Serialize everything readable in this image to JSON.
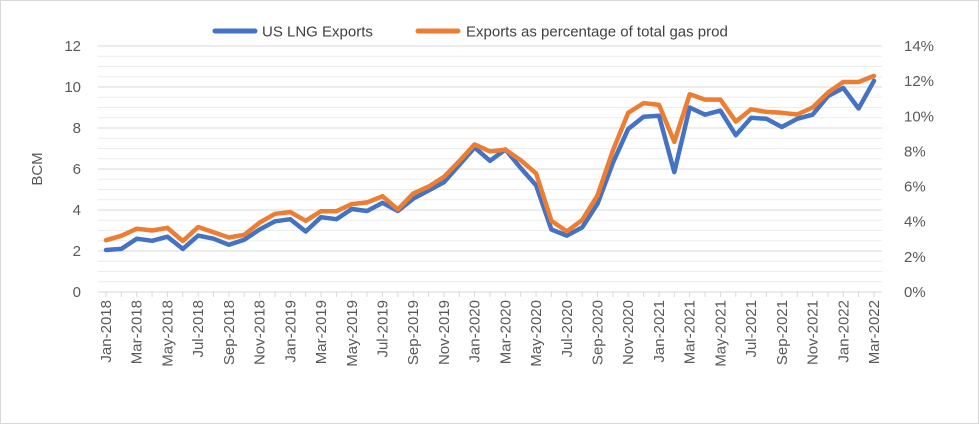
{
  "chart_data": {
    "type": "line",
    "title": "",
    "ylabel": "BCM",
    "y2label": "",
    "ylim": [
      0,
      12
    ],
    "y2lim": [
      0,
      14
    ],
    "y_ticks": [
      "0",
      "2",
      "4",
      "6",
      "8",
      "10",
      "12"
    ],
    "y2_ticks": [
      "0%",
      "2%",
      "4%",
      "6%",
      "8%",
      "10%",
      "12%",
      "14%"
    ],
    "x": [
      "Jan-2018",
      "Feb-2018",
      "Mar-2018",
      "Apr-2018",
      "May-2018",
      "Jun-2018",
      "Jul-2018",
      "Aug-2018",
      "Sep-2018",
      "Oct-2018",
      "Nov-2018",
      "Dec-2018",
      "Jan-2019",
      "Feb-2019",
      "Mar-2019",
      "Apr-2019",
      "May-2019",
      "Jun-2019",
      "Jul-2019",
      "Aug-2019",
      "Sep-2019",
      "Oct-2019",
      "Nov-2019",
      "Dec-2019",
      "Jan-2020",
      "Feb-2020",
      "Mar-2020",
      "Apr-2020",
      "May-2020",
      "Jun-2020",
      "Jul-2020",
      "Aug-2020",
      "Sep-2020",
      "Oct-2020",
      "Nov-2020",
      "Dec-2020",
      "Jan-2021",
      "Feb-2021",
      "Mar-2021",
      "Apr-2021",
      "May-2021",
      "Jun-2021",
      "Jul-2021",
      "Aug-2021",
      "Sep-2021",
      "Oct-2021",
      "Nov-2021",
      "Dec-2021",
      "Jan-2022",
      "Feb-2022",
      "Mar-2022"
    ],
    "x_tick_labels": [
      "Jan-2018",
      "Mar-2018",
      "May-2018",
      "Jul-2018",
      "Sep-2018",
      "Nov-2018",
      "Jan-2019",
      "Mar-2019",
      "May-2019",
      "Jul-2019",
      "Sep-2019",
      "Nov-2019",
      "Jan-2020",
      "Mar-2020",
      "May-2020",
      "Jul-2020",
      "Sep-2020",
      "Nov-2020",
      "Jan-2021",
      "Mar-2021",
      "May-2021",
      "Jul-2021",
      "Sep-2021",
      "Nov-2021",
      "Jan-2022",
      "Mar-2022"
    ],
    "grid": true,
    "legend_position": "top-center",
    "series": [
      {
        "name": "US LNG Exports",
        "axis": "left",
        "color": "#4472C4",
        "values": [
          2.05,
          2.1,
          2.6,
          2.5,
          2.7,
          2.1,
          2.75,
          2.6,
          2.3,
          2.55,
          3.05,
          3.45,
          3.55,
          2.95,
          3.65,
          3.55,
          4.05,
          3.95,
          4.35,
          3.95,
          4.55,
          4.95,
          5.35,
          6.2,
          7.05,
          6.4,
          6.95,
          6.05,
          5.2,
          3.05,
          2.75,
          3.15,
          4.3,
          6.3,
          7.95,
          8.55,
          8.6,
          5.85,
          9.0,
          8.65,
          8.85,
          7.65,
          8.5,
          8.45,
          8.05,
          8.45,
          8.65,
          9.55,
          9.95,
          8.95,
          10.3
        ]
      },
      {
        "name": "Exports as percentage of total gas prod",
        "axis": "right",
        "color": "#ED7D31",
        "values": [
          2.95,
          3.2,
          3.6,
          3.5,
          3.65,
          2.9,
          3.7,
          3.4,
          3.1,
          3.25,
          3.95,
          4.45,
          4.55,
          4.05,
          4.6,
          4.6,
          5.0,
          5.1,
          5.45,
          4.7,
          5.6,
          6.0,
          6.55,
          7.45,
          8.4,
          8.0,
          8.1,
          7.5,
          6.75,
          4.05,
          3.45,
          4.1,
          5.5,
          8.05,
          10.2,
          10.75,
          10.65,
          8.55,
          11.25,
          10.95,
          10.95,
          9.7,
          10.4,
          10.25,
          10.2,
          10.1,
          10.5,
          11.35,
          11.95,
          11.95,
          12.3
        ]
      }
    ]
  }
}
